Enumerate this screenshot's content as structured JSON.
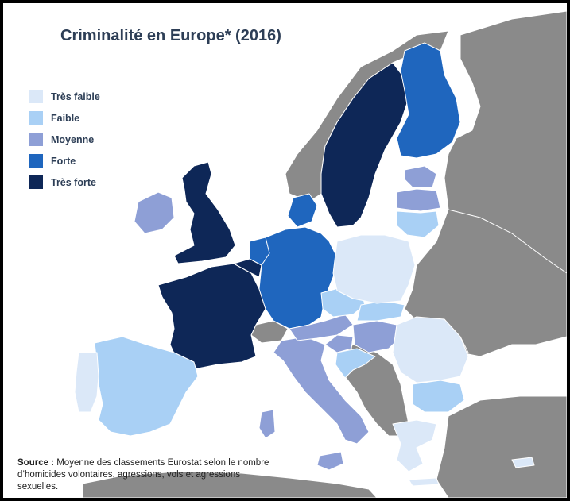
{
  "title": "Criminalité en Europe* (2016)",
  "legend": [
    {
      "label": "Très faible",
      "color": "#dbe8f8"
    },
    {
      "label": "Faible",
      "color": "#a9d0f5"
    },
    {
      "label": "Moyenne",
      "color": "#8e9fd6"
    },
    {
      "label": "Forte",
      "color": "#1f66be"
    },
    {
      "label": "Très forte",
      "color": "#0e2757"
    }
  ],
  "source": {
    "label": "Source :",
    "text": "Moyenne des classements Eurostat selon le nombre  d’homicides volontaires, agressions, vols et agressions sexuelles."
  },
  "colors": {
    "no_data": "#8a8a8a",
    "border": "#ffffff"
  },
  "regions": [
    {
      "name": "France",
      "level": "Très forte"
    },
    {
      "name": "Royaume-Uni",
      "level": "Très forte"
    },
    {
      "name": "Suède",
      "level": "Très forte"
    },
    {
      "name": "Belgique",
      "level": "Très forte"
    },
    {
      "name": "Finlande",
      "level": "Forte"
    },
    {
      "name": "Allemagne",
      "level": "Forte"
    },
    {
      "name": "Danemark",
      "level": "Forte"
    },
    {
      "name": "Pays-Bas",
      "level": "Forte"
    },
    {
      "name": "Irlande",
      "level": "Moyenne"
    },
    {
      "name": "Italie",
      "level": "Moyenne"
    },
    {
      "name": "Autriche",
      "level": "Moyenne"
    },
    {
      "name": "Hongrie",
      "level": "Moyenne"
    },
    {
      "name": "Slovénie",
      "level": "Moyenne"
    },
    {
      "name": "Estonie",
      "level": "Moyenne"
    },
    {
      "name": "Lettonie",
      "level": "Moyenne"
    },
    {
      "name": "Espagne",
      "level": "Faible"
    },
    {
      "name": "Lituanie",
      "level": "Faible"
    },
    {
      "name": "Tchéquie",
      "level": "Faible"
    },
    {
      "name": "Slovaquie",
      "level": "Faible"
    },
    {
      "name": "Croatie",
      "level": "Faible"
    },
    {
      "name": "Bulgarie",
      "level": "Faible"
    },
    {
      "name": "Pologne",
      "level": "Très faible"
    },
    {
      "name": "Portugal",
      "level": "Très faible"
    },
    {
      "name": "Roumanie",
      "level": "Très faible"
    },
    {
      "name": "Grèce",
      "level": "Très faible"
    },
    {
      "name": "Chypre",
      "level": "Très faible"
    }
  ]
}
